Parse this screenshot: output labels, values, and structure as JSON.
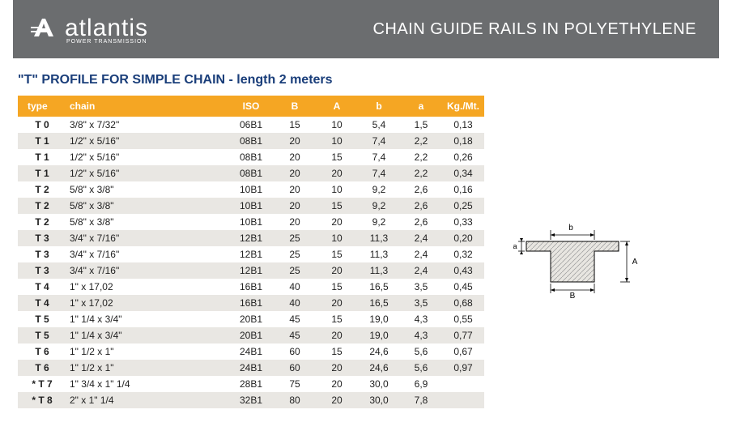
{
  "header": {
    "brand": "atlantis",
    "brand_sub": "POWER TRANSMISSION",
    "title": "CHAIN GUIDE RAILS IN POLYETHYLENE"
  },
  "subtitle": "\"T\" PROFILE FOR SIMPLE CHAIN - length 2 meters",
  "columns": [
    "type",
    "chain",
    "ISO",
    "B",
    "A",
    "b",
    "a",
    "Kg./Mt."
  ],
  "rows": [
    [
      "T 0",
      "3/8\"  x  7/32\"",
      "06B1",
      "15",
      "10",
      "5,4",
      "1,5",
      "0,13"
    ],
    [
      "T 1",
      "1/2\"  x  5/16\"",
      "08B1",
      "20",
      "10",
      "7,4",
      "2,2",
      "0,18"
    ],
    [
      "T 1",
      "1/2\"  x  5/16\"",
      "08B1",
      "20",
      "15",
      "7,4",
      "2,2",
      "0,26"
    ],
    [
      "T 1",
      "1/2\"  x  5/16\"",
      "08B1",
      "20",
      "20",
      "7,4",
      "2,2",
      "0,34"
    ],
    [
      "T 2",
      "5/8\"  x  3/8\"",
      "10B1",
      "20",
      "10",
      "9,2",
      "2,6",
      "0,16"
    ],
    [
      "T 2",
      "5/8\"  x  3/8\"",
      "10B1",
      "20",
      "15",
      "9,2",
      "2,6",
      "0,25"
    ],
    [
      "T 2",
      "5/8\"  x  3/8\"",
      "10B1",
      "20",
      "20",
      "9,2",
      "2,6",
      "0,33"
    ],
    [
      "T 3",
      "3/4\"  x  7/16\"",
      "12B1",
      "25",
      "10",
      "11,3",
      "2,4",
      "0,20"
    ],
    [
      "T 3",
      "3/4\"  x  7/16\"",
      "12B1",
      "25",
      "15",
      "11,3",
      "2,4",
      "0,32"
    ],
    [
      "T 3",
      "3/4\"  x  7/16\"",
      "12B1",
      "25",
      "20",
      "11,3",
      "2,4",
      "0,43"
    ],
    [
      "T 4",
      "1\"  x  17,02",
      "16B1",
      "40",
      "15",
      "16,5",
      "3,5",
      "0,45"
    ],
    [
      "T 4",
      "1\"  x  17,02",
      "16B1",
      "40",
      "20",
      "16,5",
      "3,5",
      "0,68"
    ],
    [
      "T 5",
      "1\" 1/4  x  3/4\"",
      "20B1",
      "45",
      "15",
      "19,0",
      "4,3",
      "0,55"
    ],
    [
      "T 5",
      "1\" 1/4  x  3/4\"",
      "20B1",
      "45",
      "20",
      "19,0",
      "4,3",
      "0,77"
    ],
    [
      "T 6",
      "1\" 1/2  x  1\"",
      "24B1",
      "60",
      "15",
      "24,6",
      "5,6",
      "0,67"
    ],
    [
      "T 6",
      "1\" 1/2  x  1\"",
      "24B1",
      "60",
      "20",
      "24,6",
      "5,6",
      "0,97"
    ],
    [
      "* T 7",
      "1\" 3/4  x  1\" 1/4",
      "28B1",
      "75",
      "20",
      "30,0",
      "6,9",
      ""
    ],
    [
      "* T 8",
      "2\"  x  1\" 1/4",
      "32B1",
      "80",
      "20",
      "30,0",
      "7,8",
      ""
    ]
  ],
  "diagram": {
    "label_b": "b",
    "label_a": "a",
    "label_A": "A",
    "label_B": "B",
    "stroke": "#000000",
    "fill": "#e4e2dd"
  },
  "colors": {
    "header_bg": "#6b6d6f",
    "thead_bg": "#f5a623",
    "row_alt": "#e9e7e3",
    "subtitle": "#1a3e7a"
  }
}
